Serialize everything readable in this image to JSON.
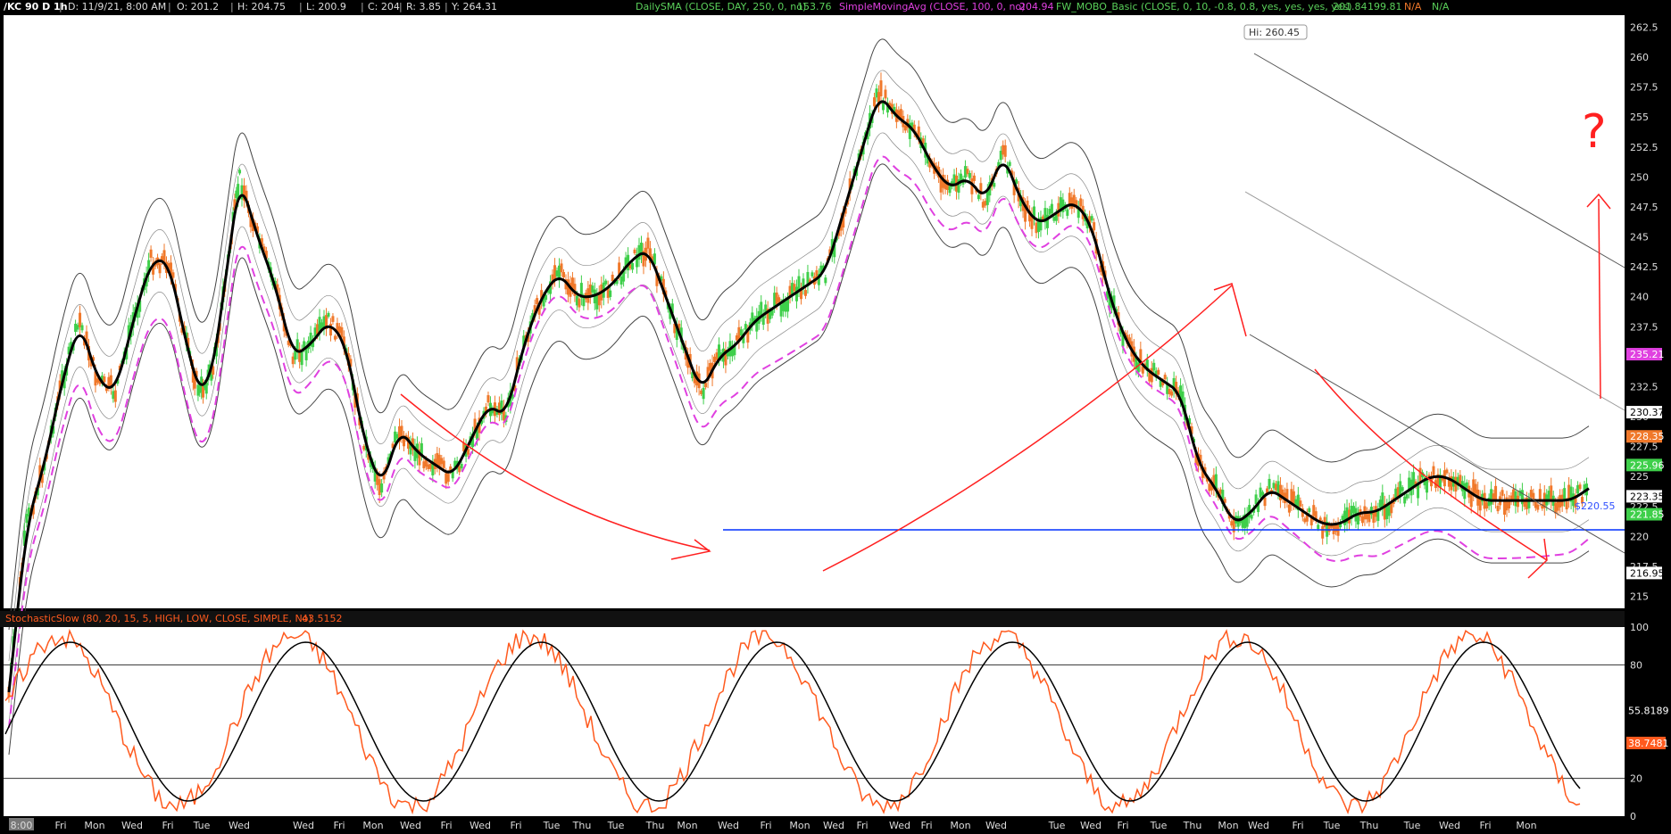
{
  "header": {
    "symbol": "/KC 90 D 1h",
    "date": "D: 11/9/21, 8:00 AM",
    "open": "O: 201.2",
    "high": "H: 204.75",
    "low": "L: 200.9",
    "close": "C: 204",
    "range": "R: 3.85",
    "y": "Y: 264.31",
    "study1_label": "DailySMA (CLOSE, DAY, 250, 0, no)",
    "study1_value": "153.76",
    "study2_label": "SimpleMovingAvg (CLOSE, 100, 0, no)",
    "study2_value": "204.94",
    "study3_label": "FW_MOBO_Basic (CLOSE, 0, 10, -0.8, 0.8, yes, yes, yes, yes)",
    "study3_v1": "201.84",
    "study3_v2": "199.81",
    "study3_v3": "N/A",
    "study3_v4": "N/A"
  },
  "sub_header": {
    "label": "StochasticSlow (80, 20, 15, 5, HIGH, LOW, CLOSE, SIMPLE, No)",
    "value": "43.5152"
  },
  "colors": {
    "up_candle": "#3ecf4a",
    "down_candle": "#f0782a",
    "sma100": "#e040e0",
    "price_line": "#000000",
    "bands": "#444444",
    "support": "#0030ff",
    "annotation": "#ff2020",
    "stoch_k": "#ff5a1e",
    "stoch_d": "#000000"
  },
  "chart_data": [
    {
      "type": "line",
      "title": "/KC 90 D 1h",
      "xlabel": "",
      "ylabel": "",
      "ylim": [
        214,
        263.5
      ],
      "y_ticks": [
        215,
        217.5,
        220,
        222.5,
        225,
        227.5,
        230,
        232.5,
        235,
        237.5,
        240,
        242.5,
        245,
        247.5,
        250,
        252.5,
        255,
        257.5,
        260,
        262.5
      ],
      "x_tick_labels": [
        "8:00",
        "Fri",
        "Mon",
        "Wed",
        "Fri",
        "Tue",
        "Wed",
        "Wed",
        "Fri",
        "Mon",
        "Wed",
        "Fri",
        "Wed",
        "Fri",
        "Tue",
        "Thu",
        "Tue",
        "Thu",
        "Mon",
        "Wed",
        "Fri",
        "Mon",
        "Wed",
        "Fri",
        "Wed",
        "Fri",
        "Mon",
        "Wed",
        "Tue",
        "Wed",
        "Fri",
        "Tue",
        "Thu",
        "Mon",
        "Wed",
        "Fri",
        "Tue",
        "Thu",
        "Tue",
        "Wed",
        "Fri",
        "Mon"
      ],
      "series": [
        {
          "name": "price",
          "x": [
            0,
            20,
            40,
            60,
            80,
            100,
            120,
            140,
            160,
            180,
            200,
            215,
            230,
            245,
            260,
            280,
            300,
            320,
            340,
            360,
            380,
            400,
            420,
            440,
            460,
            480,
            500,
            520,
            540,
            560,
            580,
            600,
            620,
            640,
            660,
            680,
            700,
            720,
            740,
            760,
            780,
            800,
            820,
            840,
            860,
            880,
            900,
            920,
            940,
            960,
            980,
            1000,
            1020,
            1040,
            1060,
            1080,
            1100,
            1120,
            1140,
            1160,
            1180,
            1200,
            1220,
            1240,
            1260,
            1280,
            1300,
            1320,
            1340,
            1360,
            1380,
            1400,
            1420,
            1440,
            1460,
            1480,
            1500,
            1520,
            1540,
            1560,
            1580,
            1600,
            1620,
            1640,
            1660,
            1680,
            1700,
            1720,
            1740,
            1760,
            1780
          ],
          "values": [
            207,
            221,
            226,
            233,
            238,
            233,
            232,
            238,
            243,
            243,
            236,
            232,
            234,
            242,
            250,
            245,
            241,
            235,
            236,
            238,
            236,
            228,
            224,
            229,
            227,
            226,
            225,
            228,
            231,
            230,
            236,
            240,
            242,
            240,
            240,
            241,
            243,
            244,
            240,
            236,
            232,
            235,
            236,
            238,
            239,
            240,
            241,
            242,
            247,
            252,
            257,
            255,
            254,
            251,
            249,
            250,
            248,
            252,
            248,
            246,
            247,
            248,
            246,
            240,
            236,
            234,
            233,
            232,
            226,
            224,
            221,
            222,
            224,
            223,
            222,
            221,
            221,
            222,
            222,
            223,
            224,
            225,
            225,
            224,
            223,
            223,
            223,
            223,
            223,
            223,
            224
          ]
        },
        {
          "name": "SimpleMovingAvg (CLOSE, 100, 0, no)",
          "values": [
            204.94,
            235.21
          ]
        },
        {
          "name": "support",
          "values": [
            220.55
          ]
        }
      ],
      "price_labels": [
        "235.21",
        "230.37",
        "228.35",
        "225.96",
        "223.35",
        "221.85",
        "216.95"
      ],
      "annotations": [
        "Hi: 260.45",
        "$220.55",
        "?"
      ]
    },
    {
      "type": "line",
      "title": "StochasticSlow (80, 20, 15, 5, HIGH, LOW, CLOSE, SIMPLE, No)",
      "ylim": [
        0,
        100
      ],
      "y_ticks": [
        0,
        20,
        80,
        100
      ],
      "overbought": 80,
      "oversold": 20,
      "last_values": [
        "55.8189",
        "38.7481"
      ]
    }
  ]
}
